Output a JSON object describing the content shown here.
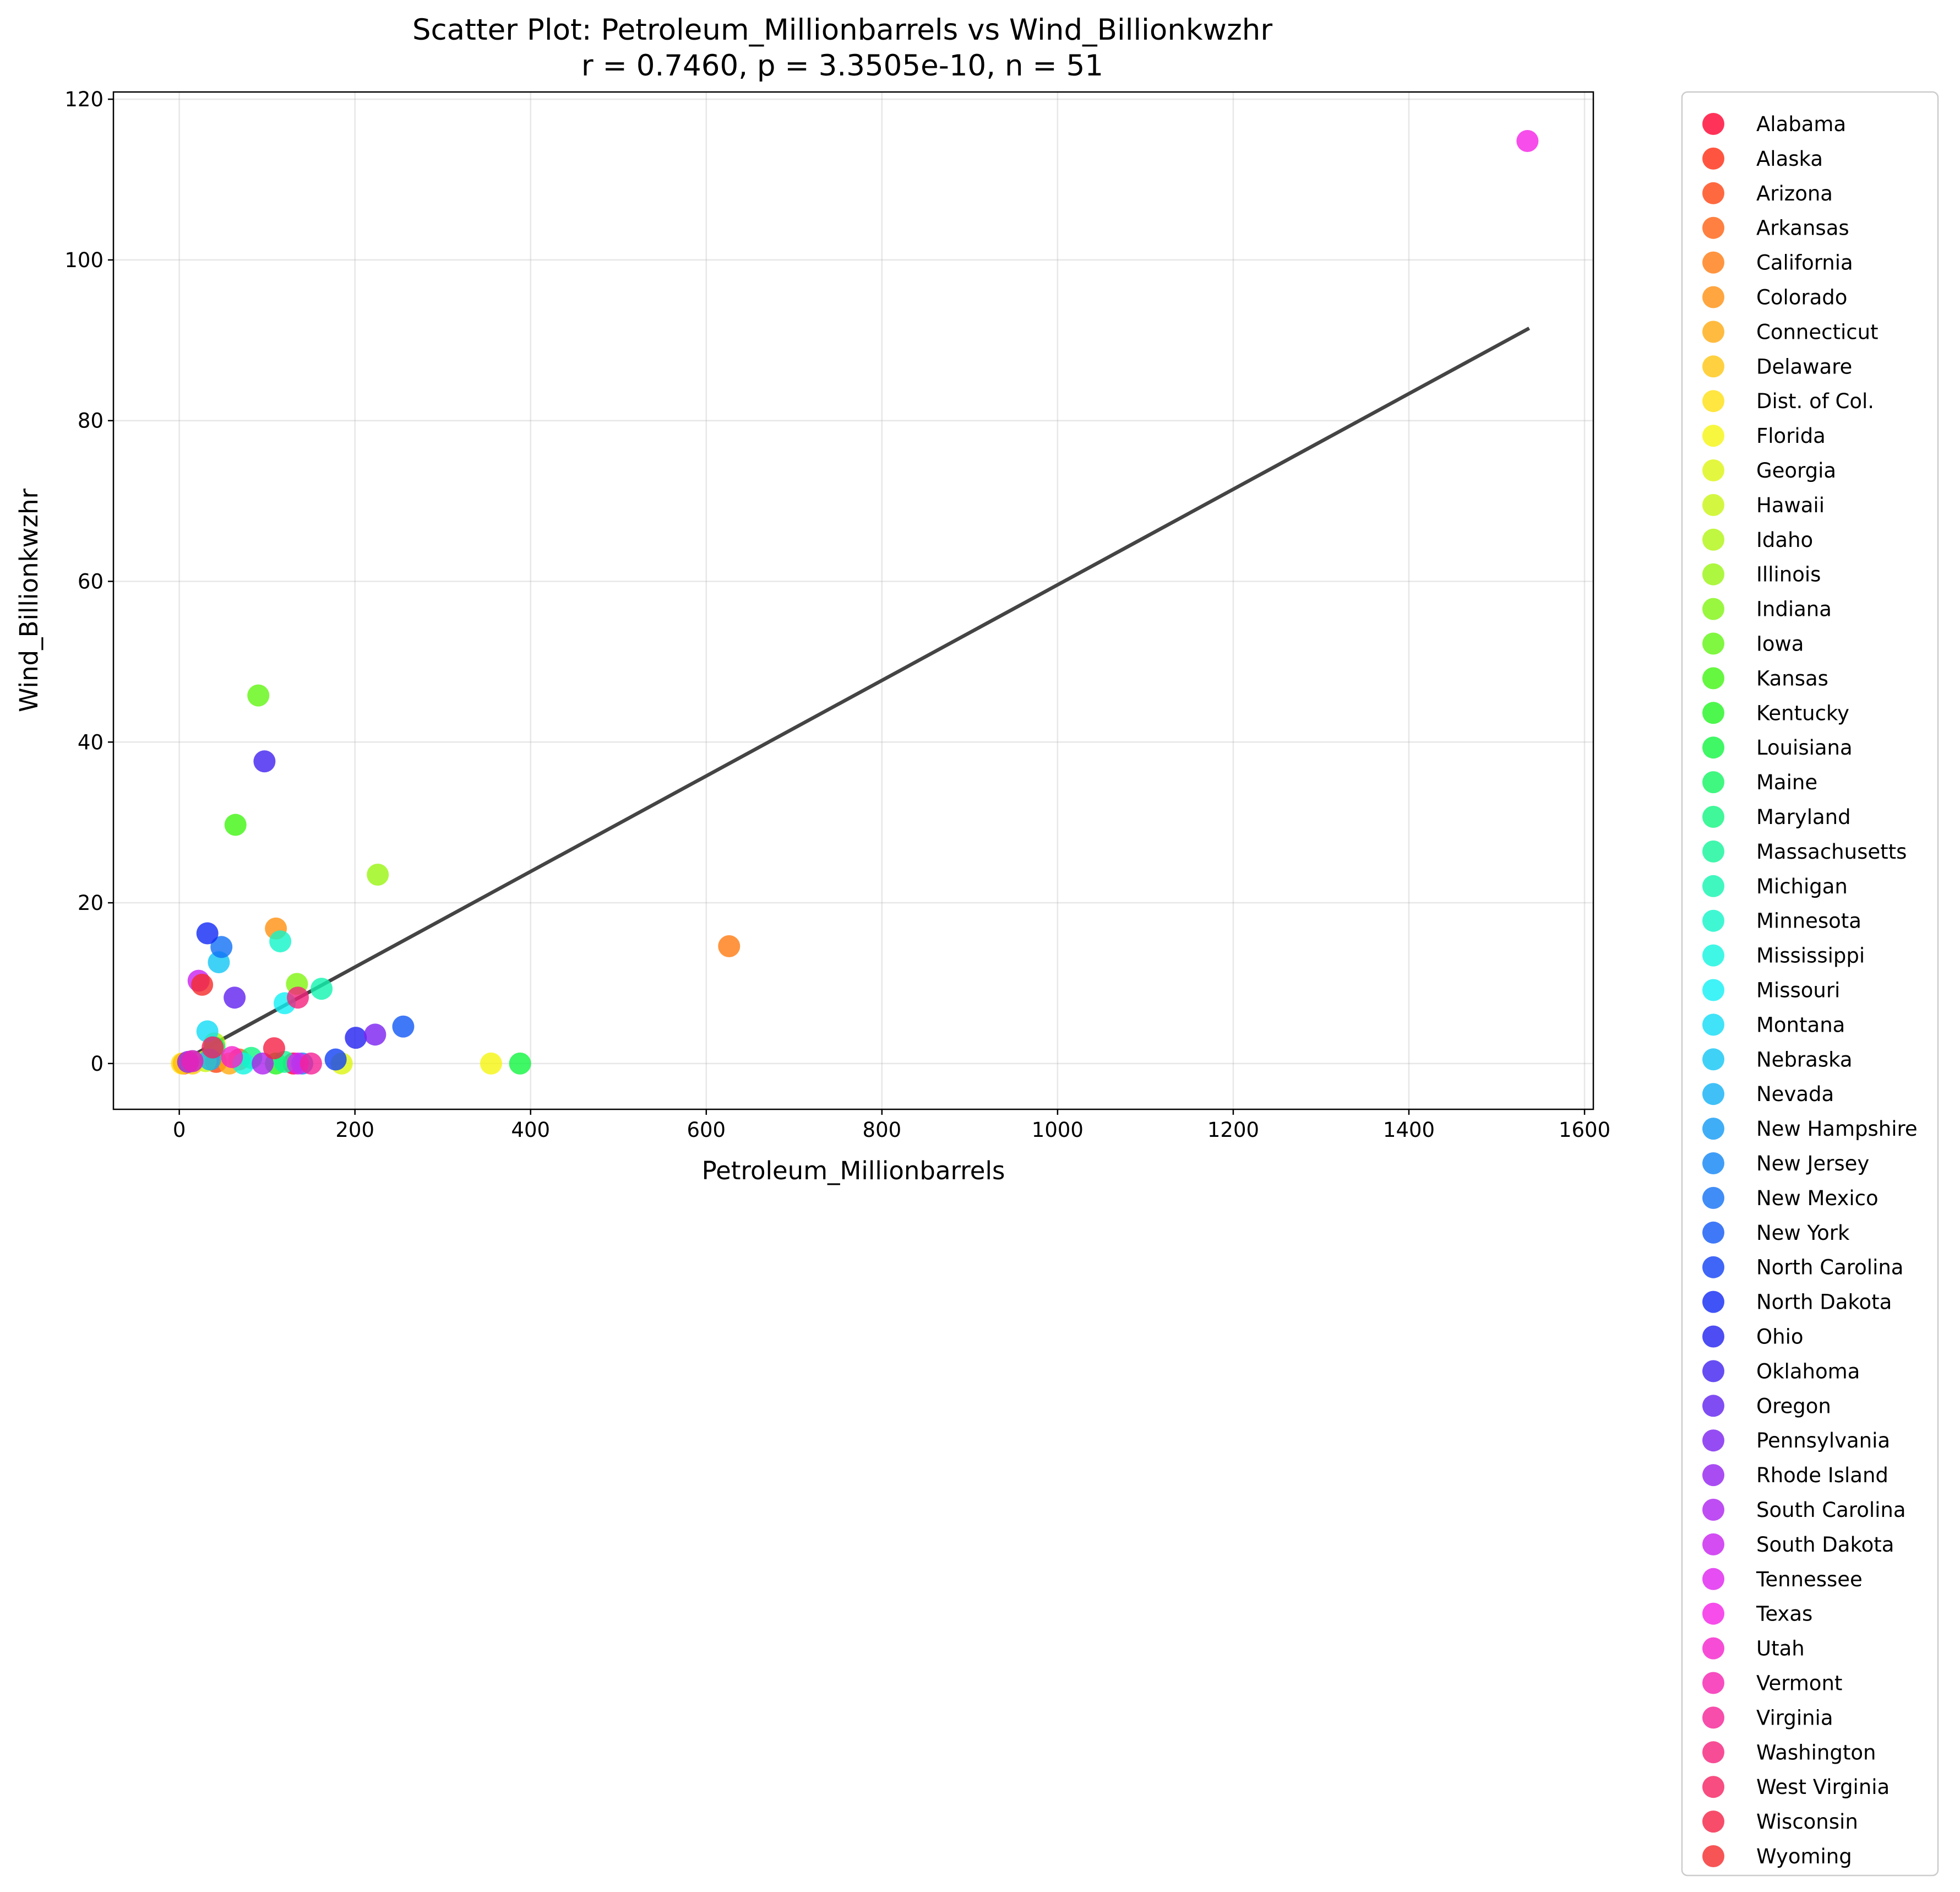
{
  "chart_data": {
    "type": "scatter",
    "title": "Scatter Plot: Petroleum_Millionbarrels vs Wind_Billionkwzhr",
    "subtitle": "r = 0.7460, p = 3.3505e-10, n = 51",
    "xlabel": "Petroleum_Millionbarrels",
    "ylabel": "Wind_Billionkwzhr",
    "xlim": [
      -75,
      1610
    ],
    "ylim": [
      -5.7,
      120.9
    ],
    "xticks": [
      0,
      200,
      400,
      600,
      800,
      1000,
      1200,
      1400,
      1600
    ],
    "yticks": [
      0,
      20,
      40,
      60,
      80,
      100,
      120
    ],
    "xtick_labels": [
      "0",
      "200",
      "400",
      "600",
      "800",
      "1000",
      "1200",
      "1400",
      "1600"
    ],
    "ytick_labels": [
      "0",
      "20",
      "40",
      "60",
      "80",
      "100",
      "120"
    ],
    "grid": true,
    "legend_position": "outside-right",
    "trend_line": {
      "x": [
        5,
        1537
      ],
      "y": [
        0.4,
        91.5
      ],
      "color": "#444444"
    },
    "series": [
      {
        "name": "Alabama",
        "x": 130,
        "y": 0.0,
        "color": "#ff0030"
      },
      {
        "name": "Alaska",
        "x": 5,
        "y": 0.0,
        "color": "#ff2a10"
      },
      {
        "name": "Arizona",
        "x": 42,
        "y": 0.2,
        "color": "#ff4410"
      },
      {
        "name": "Arkansas",
        "x": 68,
        "y": 0.5,
        "color": "#ff6010"
      },
      {
        "name": "California",
        "x": 626,
        "y": 14.6,
        "color": "#ff7a10"
      },
      {
        "name": "Colorado",
        "x": 110,
        "y": 16.8,
        "color": "#ff9010"
      },
      {
        "name": "Connecticut",
        "x": 57,
        "y": 0.0,
        "color": "#ffaa10"
      },
      {
        "name": "Delaware",
        "x": 15,
        "y": 0.0,
        "color": "#ffc510"
      },
      {
        "name": "Dist. of Col.",
        "x": 3,
        "y": 0.0,
        "color": "#ffe010"
      },
      {
        "name": "Florida",
        "x": 355,
        "y": 0.0,
        "color": "#f5f510"
      },
      {
        "name": "Georgia",
        "x": 185,
        "y": 0.0,
        "color": "#ddf510"
      },
      {
        "name": "Hawaii",
        "x": 30,
        "y": 0.3,
        "color": "#c8f510"
      },
      {
        "name": "Idaho",
        "x": 40,
        "y": 2.5,
        "color": "#b0f510"
      },
      {
        "name": "Illinois",
        "x": 226,
        "y": 23.5,
        "color": "#98f510"
      },
      {
        "name": "Indiana",
        "x": 134,
        "y": 9.9,
        "color": "#80f510"
      },
      {
        "name": "Iowa",
        "x": 90,
        "y": 45.8,
        "color": "#60f510"
      },
      {
        "name": "Kansas",
        "x": 64,
        "y": 29.7,
        "color": "#40f510"
      },
      {
        "name": "Kentucky",
        "x": 110,
        "y": 0.0,
        "color": "#20f520"
      },
      {
        "name": "Louisiana",
        "x": 388,
        "y": 0.0,
        "color": "#10f540"
      },
      {
        "name": "Maine",
        "x": 40,
        "y": 2.0,
        "color": "#10f560"
      },
      {
        "name": "Maryland",
        "x": 82,
        "y": 0.7,
        "color": "#10f580"
      },
      {
        "name": "Massachusetts",
        "x": 120,
        "y": 0.2,
        "color": "#10f598"
      },
      {
        "name": "Michigan",
        "x": 162,
        "y": 9.3,
        "color": "#10f5b0"
      },
      {
        "name": "Minnesota",
        "x": 115,
        "y": 15.2,
        "color": "#10f5c8"
      },
      {
        "name": "Mississippi",
        "x": 73,
        "y": 0.0,
        "color": "#10f5e0"
      },
      {
        "name": "Missouri",
        "x": 120,
        "y": 7.5,
        "color": "#10f0f5"
      },
      {
        "name": "Montana",
        "x": 32,
        "y": 4.0,
        "color": "#10dcf5"
      },
      {
        "name": "Nebraska",
        "x": 45,
        "y": 12.6,
        "color": "#10c5f5"
      },
      {
        "name": "Nevada",
        "x": 35,
        "y": 0.5,
        "color": "#10b0f5"
      },
      {
        "name": "New Hampshire",
        "x": 15,
        "y": 0.3,
        "color": "#109af5"
      },
      {
        "name": "New Jersey",
        "x": 140,
        "y": 0.0,
        "color": "#1085f5"
      },
      {
        "name": "New Mexico",
        "x": 48,
        "y": 14.5,
        "color": "#1070f5"
      },
      {
        "name": "New York",
        "x": 255,
        "y": 4.6,
        "color": "#1058f5"
      },
      {
        "name": "North Carolina",
        "x": 178,
        "y": 0.5,
        "color": "#1040f5"
      },
      {
        "name": "North Dakota",
        "x": 32,
        "y": 16.2,
        "color": "#1028f5"
      },
      {
        "name": "Ohio",
        "x": 201,
        "y": 3.2,
        "color": "#2020f0"
      },
      {
        "name": "Oklahoma",
        "x": 97,
        "y": 37.6,
        "color": "#4020f0"
      },
      {
        "name": "Oregon",
        "x": 63,
        "y": 8.2,
        "color": "#6020f0"
      },
      {
        "name": "Pennsylvania",
        "x": 223,
        "y": 3.6,
        "color": "#7a20f0"
      },
      {
        "name": "Rhode Island",
        "x": 10,
        "y": 0.2,
        "color": "#9420f0"
      },
      {
        "name": "South Carolina",
        "x": 95,
        "y": 0.0,
        "color": "#ae20f0"
      },
      {
        "name": "South Dakota",
        "x": 22,
        "y": 10.3,
        "color": "#c820f0"
      },
      {
        "name": "Tennessee",
        "x": 135,
        "y": 0.0,
        "color": "#e020f0"
      },
      {
        "name": "Texas",
        "x": 1535,
        "y": 114.8,
        "color": "#f520e6"
      },
      {
        "name": "Utah",
        "x": 60,
        "y": 0.8,
        "color": "#f520cc"
      },
      {
        "name": "Vermont",
        "x": 15,
        "y": 0.3,
        "color": "#f520b0"
      },
      {
        "name": "Virginia",
        "x": 150,
        "y": 0.0,
        "color": "#f52096"
      },
      {
        "name": "Washington",
        "x": 135,
        "y": 8.2,
        "color": "#f5207c"
      },
      {
        "name": "West Virginia",
        "x": 38,
        "y": 2.0,
        "color": "#f52060"
      },
      {
        "name": "Wisconsin",
        "x": 108,
        "y": 1.9,
        "color": "#f52045"
      },
      {
        "name": "Wyoming",
        "x": 26,
        "y": 9.8,
        "color": "#f52a2a"
      }
    ]
  }
}
